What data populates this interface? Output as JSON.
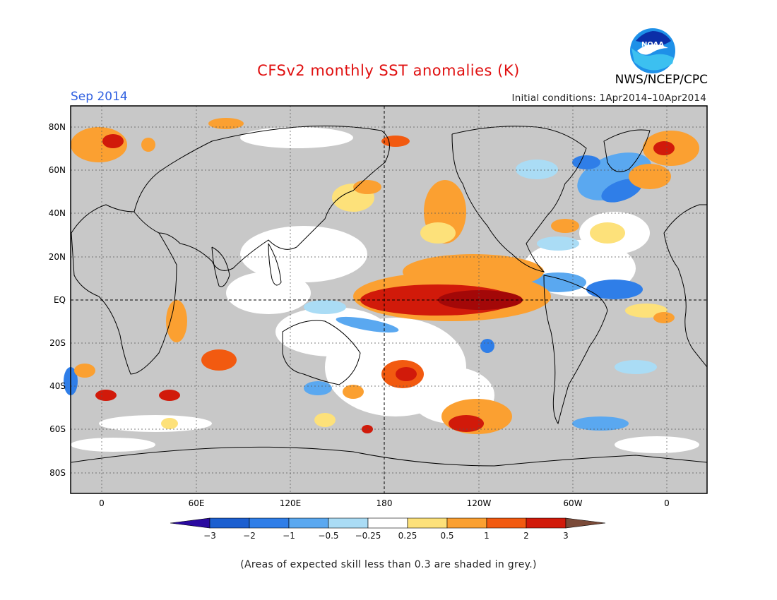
{
  "title": "CFSv2 monthly SST anomalies (K)",
  "period": "Sep 2014",
  "initial_conditions": "Initial conditions: 1Apr2014–10Apr2014",
  "agency": "NWS/NCEP/CPC",
  "logo_text": "NOAA",
  "footnote": "(Areas of expected skill less than 0.3 are shaded in grey.)",
  "map": {
    "x_ticks": [
      "0",
      "60E",
      "120E",
      "180",
      "120W",
      "60W",
      "0"
    ],
    "y_ticks": [
      "80N",
      "60N",
      "40N",
      "20N",
      "EQ",
      "20S",
      "40S",
      "60S",
      "80S"
    ],
    "grey_color": "#c8c8c8"
  },
  "colorbar": {
    "labels": [
      "−3",
      "−2",
      "−1",
      "−0.5",
      "−0.25",
      "0.25",
      "0.5",
      "1",
      "2",
      "3"
    ],
    "colors": [
      "#2a0aa0",
      "#1c5fd0",
      "#2f7ee8",
      "#5aa8f0",
      "#aadcf5",
      "#ffffff",
      "#fde17a",
      "#fba031",
      "#f25a10",
      "#d11a0a",
      "#a30808",
      "#7a4a38"
    ]
  }
}
